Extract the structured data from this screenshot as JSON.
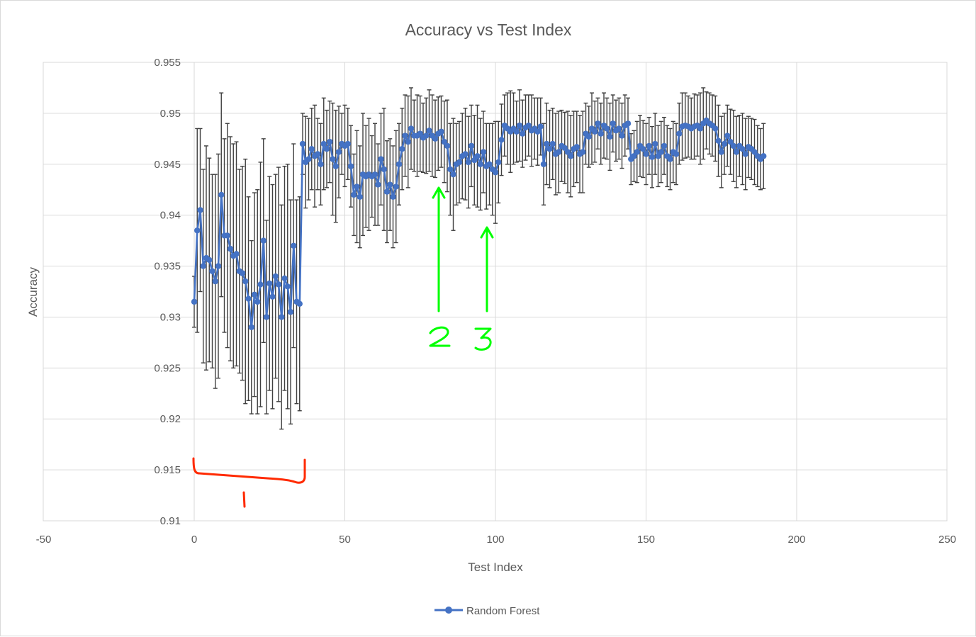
{
  "chart_data": {
    "type": "scatter",
    "title": "Accuracy vs Test Index",
    "xlabel": "Test Index",
    "ylabel": "Accuracy",
    "xlim": [
      -50,
      250
    ],
    "ylim": [
      0.91,
      0.955
    ],
    "x_ticks": [
      "-50",
      "0",
      "50",
      "100",
      "150",
      "200",
      "250"
    ],
    "y_ticks": [
      "0.91",
      "0.915",
      "0.92",
      "0.925",
      "0.93",
      "0.935",
      "0.94",
      "0.945",
      "0.95",
      "0.955"
    ],
    "grid": true,
    "legend": "bottom",
    "series": [
      {
        "name": "Random Forest",
        "color": "#4472c4",
        "error_color": "#404040",
        "x_start": 0,
        "x_step": 1,
        "values": [
          0.9315,
          0.9385,
          0.9405,
          0.935,
          0.9358,
          0.9356,
          0.9345,
          0.9335,
          0.935,
          0.942,
          0.938,
          0.938,
          0.9367,
          0.936,
          0.9362,
          0.9345,
          0.9343,
          0.9335,
          0.9318,
          0.929,
          0.9322,
          0.9315,
          0.9332,
          0.9375,
          0.93,
          0.9333,
          0.932,
          0.934,
          0.9332,
          0.93,
          0.9338,
          0.933,
          0.9305,
          0.937,
          0.9315,
          0.9313,
          0.947,
          0.9452,
          0.9455,
          0.9465,
          0.9458,
          0.946,
          0.945,
          0.947,
          0.9465,
          0.9472,
          0.9455,
          0.9448,
          0.9462,
          0.947,
          0.9468,
          0.947,
          0.9448,
          0.942,
          0.9428,
          0.9418,
          0.944,
          0.9438,
          0.944,
          0.9438,
          0.944,
          0.943,
          0.9455,
          0.9445,
          0.9423,
          0.943,
          0.9418,
          0.9428,
          0.945,
          0.9465,
          0.9478,
          0.9472,
          0.9485,
          0.9478,
          0.9478,
          0.948,
          0.9476,
          0.9478,
          0.9483,
          0.9478,
          0.9475,
          0.948,
          0.9482,
          0.9472,
          0.9468,
          0.9445,
          0.944,
          0.945,
          0.9452,
          0.9458,
          0.946,
          0.9452,
          0.9468,
          0.9454,
          0.9458,
          0.945,
          0.9462,
          0.9448,
          0.945,
          0.9445,
          0.9442,
          0.9452,
          0.9474,
          0.9488,
          0.9485,
          0.9482,
          0.9485,
          0.9482,
          0.9488,
          0.948,
          0.9486,
          0.9488,
          0.9483,
          0.9485,
          0.9482,
          0.9487,
          0.945,
          0.947,
          0.9465,
          0.947,
          0.946,
          0.9462,
          0.9468,
          0.9466,
          0.9462,
          0.9458,
          0.9465,
          0.9467,
          0.946,
          0.9462,
          0.948,
          0.9477,
          0.9485,
          0.9482,
          0.949,
          0.948,
          0.9488,
          0.9485,
          0.9477,
          0.949,
          0.9483,
          0.9485,
          0.9478,
          0.9488,
          0.949,
          0.9455,
          0.9458,
          0.9462,
          0.9468,
          0.9465,
          0.946,
          0.9468,
          0.9457,
          0.947,
          0.9458,
          0.9462,
          0.9468,
          0.9458,
          0.9455,
          0.9462,
          0.946,
          0.948,
          0.9487,
          0.9488,
          0.9487,
          0.9485,
          0.9487,
          0.9488,
          0.9485,
          0.949,
          0.9493,
          0.949,
          0.9488,
          0.9485,
          0.9473,
          0.9462,
          0.947,
          0.9478,
          0.9472,
          0.9468,
          0.9462,
          0.9468,
          0.9465,
          0.946,
          0.9467,
          0.9465,
          0.9462,
          0.9458,
          0.9455,
          0.9458
        ],
        "errors": [
          0.0025,
          0.01,
          0.008,
          0.0095,
          0.011,
          0.01,
          0.0095,
          0.0105,
          0.011,
          0.01,
          0.0095,
          0.011,
          0.011,
          0.011,
          0.011,
          0.01,
          0.0105,
          0.012,
          0.01,
          0.0085,
          0.01,
          0.011,
          0.012,
          0.01,
          0.0095,
          0.0105,
          0.011,
          0.01,
          0.0115,
          0.011,
          0.011,
          0.012,
          0.011,
          0.01,
          0.01,
          0.0105,
          0.003,
          0.0045,
          0.004,
          0.004,
          0.005,
          0.0035,
          0.004,
          0.0045,
          0.0038,
          0.004,
          0.0055,
          0.0055,
          0.0045,
          0.003,
          0.004,
          0.0035,
          0.004,
          0.004,
          0.0055,
          0.005,
          0.006,
          0.005,
          0.0055,
          0.004,
          0.005,
          0.004,
          0.0045,
          0.006,
          0.005,
          0.0045,
          0.005,
          0.0055,
          0.004,
          0.004,
          0.004,
          0.0045,
          0.004,
          0.0035,
          0.004,
          0.0037,
          0.0034,
          0.0037,
          0.004,
          0.004,
          0.0038,
          0.0036,
          0.0035,
          0.004,
          0.0045,
          0.0045,
          0.0055,
          0.004,
          0.004,
          0.0042,
          0.0045,
          0.0045,
          0.004,
          0.0044,
          0.005,
          0.0045,
          0.004,
          0.0042,
          0.004,
          0.0045,
          0.005,
          0.004,
          0.0035,
          0.003,
          0.0035,
          0.004,
          0.0035,
          0.003,
          0.0035,
          0.0033,
          0.0032,
          0.003,
          0.0035,
          0.003,
          0.0033,
          0.0028,
          0.004,
          0.004,
          0.0038,
          0.0035,
          0.004,
          0.004,
          0.0035,
          0.0035,
          0.004,
          0.004,
          0.0037,
          0.0035,
          0.0038,
          0.004,
          0.003,
          0.003,
          0.0035,
          0.003,
          0.0025,
          0.003,
          0.0032,
          0.003,
          0.0033,
          0.0028,
          0.003,
          0.003,
          0.0032,
          0.003,
          0.0025,
          0.0025,
          0.0025,
          0.003,
          0.003,
          0.0028,
          0.003,
          0.0028,
          0.003,
          0.003,
          0.003,
          0.003,
          0.0028,
          0.003,
          0.003,
          0.003,
          0.003,
          0.003,
          0.0033,
          0.0032,
          0.003,
          0.003,
          0.0032,
          0.003,
          0.0035,
          0.0035,
          0.0028,
          0.003,
          0.003,
          0.0032,
          0.0035,
          0.0035,
          0.003,
          0.003,
          0.0032,
          0.0035,
          0.0035,
          0.003,
          0.0035,
          0.0035,
          0.003,
          0.003,
          0.0032,
          0.003,
          0.003,
          0.0032
        ]
      }
    ],
    "annotations": [
      {
        "label": "1",
        "color": "#ff2a00"
      },
      {
        "label": "2",
        "color": "#00ff00"
      },
      {
        "label": "3",
        "color": "#00ff00"
      }
    ]
  }
}
